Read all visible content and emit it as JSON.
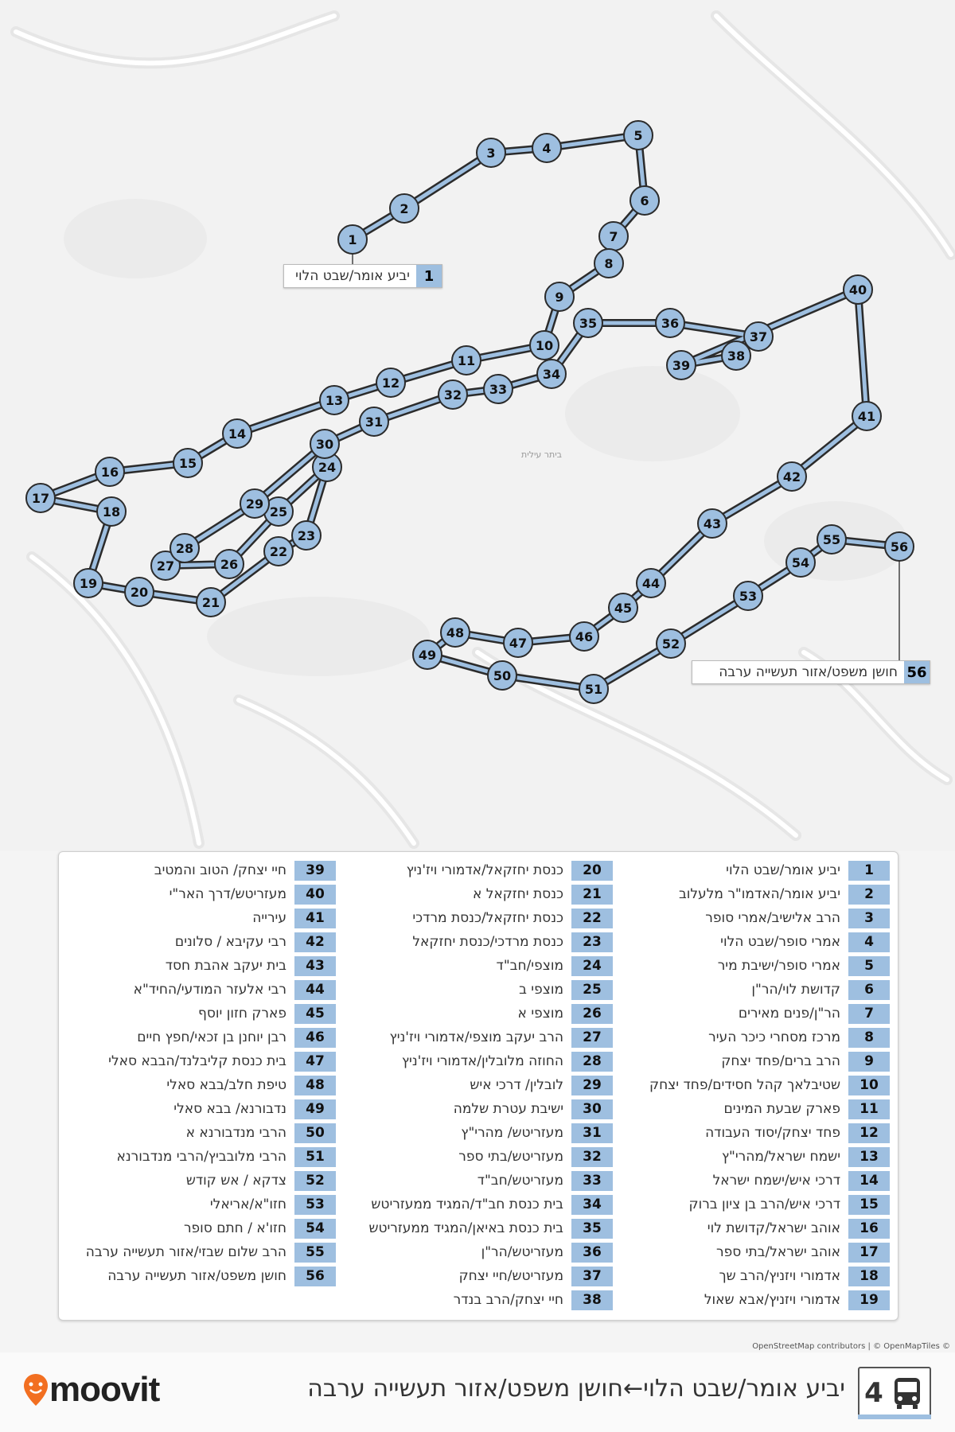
{
  "route": {
    "number": "4",
    "title": "יביע אומר/שבט הלוי←חושן משפט/אזור תעשייה ערבה",
    "color": "#9ebfe0",
    "line_color": "#2b2b2b"
  },
  "map": {
    "place_label": "ביתר עילית",
    "start_callout": {
      "num": "1",
      "name": "יביע אומר/שבט הלוי"
    },
    "end_callout": {
      "num": "56",
      "name": "חושן משפט/אזור תעשייה ערבה"
    }
  },
  "stops": [
    {
      "num": "1",
      "name": "יביע אומר/שבט הלוי"
    },
    {
      "num": "2",
      "name": "יביע אומר/האדמו\"ר מלעלוב"
    },
    {
      "num": "3",
      "name": "הרב אלישיב/אמרי סופר"
    },
    {
      "num": "4",
      "name": "אמרי סופר/שבט הלוי"
    },
    {
      "num": "5",
      "name": "אמרי סופר/ישיבת מיר"
    },
    {
      "num": "6",
      "name": "קדושת לוי/הר\"ן"
    },
    {
      "num": "7",
      "name": "הר\"ן/פנים מאירים"
    },
    {
      "num": "8",
      "name": "מרכז מסחרי כיכר העיר"
    },
    {
      "num": "9",
      "name": "הרב ברים/פחד יצחק"
    },
    {
      "num": "10",
      "name": "שטיבלאך קהל חסידים/פחד יצחק"
    },
    {
      "num": "11",
      "name": "פארק שבעת המינים"
    },
    {
      "num": "12",
      "name": "פחד יצחק/יסוד העבודה"
    },
    {
      "num": "13",
      "name": "ישמח ישראל/מהרי\"ץ"
    },
    {
      "num": "14",
      "name": "דרכי איש/ישמח ישראל"
    },
    {
      "num": "15",
      "name": "דרכי איש/הרב בן ציון ברוק"
    },
    {
      "num": "16",
      "name": "אוהב ישראל/קדושת לוי"
    },
    {
      "num": "17",
      "name": "אוהב ישראל/בתי ספר"
    },
    {
      "num": "18",
      "name": "אדמורי ויזניץ/הרב שך"
    },
    {
      "num": "19",
      "name": "אדמורי ויזניץ/אבא שאול"
    },
    {
      "num": "20",
      "name": "כנסת יחזקאל/אדמורי ויז'ניץ"
    },
    {
      "num": "21",
      "name": "כנסת יחזקאל א"
    },
    {
      "num": "22",
      "name": "כנסת יחזקאל/כנסת מרדכי"
    },
    {
      "num": "23",
      "name": "כנסת מרדכי/כנסת יחזקאל"
    },
    {
      "num": "24",
      "name": "מוצפי/חב\"ד"
    },
    {
      "num": "25",
      "name": "מוצפי ב"
    },
    {
      "num": "26",
      "name": "מוצפי א"
    },
    {
      "num": "27",
      "name": "הרב יעקב מוצפי/אדמורי ויז'ניץ"
    },
    {
      "num": "28",
      "name": "החוזה מלובלין/אדמורי ויז'ניץ"
    },
    {
      "num": "29",
      "name": "לובלין/ דרכי איש"
    },
    {
      "num": "30",
      "name": "ישיבת עטרת שלמה"
    },
    {
      "num": "31",
      "name": "מעזריטש/ מהרי\"ץ"
    },
    {
      "num": "32",
      "name": "מעזריטש/בתי ספר"
    },
    {
      "num": "33",
      "name": "מעזריטש/חב\"ד"
    },
    {
      "num": "34",
      "name": "בית כנסת חב\"ד/המגיד ממעזריטש"
    },
    {
      "num": "35",
      "name": "בית כנסת באיאן/המגיד ממעזריטש"
    },
    {
      "num": "36",
      "name": "מעזריטש/הר\"ן"
    },
    {
      "num": "37",
      "name": "מעזריטש/חיי יצחק"
    },
    {
      "num": "38",
      "name": "חיי יצחק/הרב בנדר"
    },
    {
      "num": "39",
      "name": "חיי יצחק/ הטוב והמטיב"
    },
    {
      "num": "40",
      "name": "מעזריטש/דרך האר\"י"
    },
    {
      "num": "41",
      "name": "עירייה"
    },
    {
      "num": "42",
      "name": "רבי עקיבא / סלונים"
    },
    {
      "num": "43",
      "name": "בית יעקב אהבת חסד"
    },
    {
      "num": "44",
      "name": "רבי אלעזר המודעי/החיד\"א"
    },
    {
      "num": "45",
      "name": "פארק חזון יוסף"
    },
    {
      "num": "46",
      "name": "רבן יוחנן בן זכאי/חפץ חיים"
    },
    {
      "num": "47",
      "name": "בית כנסת קליבלנד/הבבא סאלי"
    },
    {
      "num": "48",
      "name": "טיפת חלב/בבא סאלי"
    },
    {
      "num": "49",
      "name": "נדבורנא/ בבא סאלי"
    },
    {
      "num": "50",
      "name": "הרבי מנדבורנא א"
    },
    {
      "num": "51",
      "name": "הרבי מלובביץ/הרבי מנדבורנא"
    },
    {
      "num": "52",
      "name": "צדקא / אש קודש"
    },
    {
      "num": "53",
      "name": "חזו\"א/אריאלי"
    },
    {
      "num": "54",
      "name": "חזו'א / חתם סופר"
    },
    {
      "num": "55",
      "name": "הרב שלום שבזי/אזור תעשייה ערבה"
    },
    {
      "num": "56",
      "name": "חושן משפט/אזור תעשייה ערבה"
    }
  ],
  "attribution": "OpenStreetMap contributors | © OpenMapTiles ©",
  "brand": {
    "name": "moovit",
    "color": "#f26f21"
  },
  "icons": {
    "bus": "bus-icon",
    "pin": "moovit-pin-icon"
  }
}
